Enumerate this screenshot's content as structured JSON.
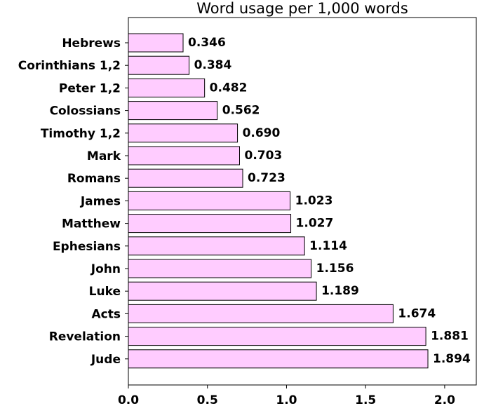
{
  "chart_data": {
    "type": "bar",
    "orientation": "horizontal",
    "title": "Word usage per 1,000 words",
    "xlabel": "",
    "ylabel": "",
    "xlim": [
      0,
      2.2
    ],
    "xticks": [
      "0.0",
      "0.5",
      "1.0",
      "1.5",
      "2.0"
    ],
    "grid": false,
    "bar_color": "#ffccff",
    "edge_color": "#000000",
    "categories": [
      "Hebrews",
      "Corinthians 1,2",
      "Peter 1,2",
      "Colossians",
      "Timothy 1,2",
      "Mark",
      "Romans",
      "James",
      "Matthew",
      "Ephesians",
      "John",
      "Luke",
      "Acts",
      "Revelation",
      "Jude"
    ],
    "values": [
      0.346,
      0.384,
      0.482,
      0.562,
      0.69,
      0.703,
      0.723,
      1.023,
      1.027,
      1.114,
      1.156,
      1.189,
      1.674,
      1.881,
      1.894
    ],
    "value_labels": [
      "0.346",
      "0.384",
      "0.482",
      "0.562",
      "0.690",
      "0.703",
      "0.723",
      "1.023",
      "1.027",
      "1.114",
      "1.156",
      "1.189",
      "1.674",
      "1.881",
      "1.894"
    ]
  }
}
